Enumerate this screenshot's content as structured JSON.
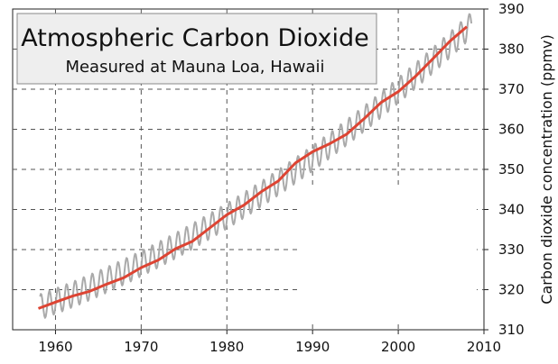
{
  "chart_data": {
    "type": "line",
    "title": "Atmospheric Carbon Dioxide",
    "subtitle": "Measured at Mauna Loa, Hawaii",
    "xlabel": "",
    "ylabel": "Carbon dioxide concentration (ppmv)",
    "xlim": [
      1955,
      2010
    ],
    "ylim": [
      310,
      390
    ],
    "x_ticks": [
      1960,
      1970,
      1980,
      1990,
      2000,
      2010
    ],
    "y_ticks": [
      310,
      320,
      330,
      340,
      350,
      360,
      370,
      380,
      390
    ],
    "grid": true,
    "y_axis_side": "right",
    "series": [
      {
        "color": "#aaaaaa",
        "style": "monthly-seasonal",
        "seasonal_amplitude": 3.2,
        "x": [
          1958.2,
          2008.5
        ],
        "values": [
          315.7,
          386
        ]
      },
      {
        "color": "#dd4433",
        "style": "annual-trend",
        "x": [
          1958,
          1960,
          1962,
          1964,
          1966,
          1968,
          1970,
          1972,
          1974,
          1976,
          1978,
          1980,
          1982,
          1984,
          1986,
          1988,
          1990,
          1992,
          1994,
          1996,
          1998,
          2000,
          2002,
          2004,
          2006,
          2008
        ],
        "values": [
          315.3,
          316.9,
          318.4,
          319.6,
          321.4,
          323.0,
          325.5,
          327.4,
          330.2,
          332.1,
          335.4,
          338.7,
          341.1,
          344.4,
          347.1,
          351.6,
          354.4,
          356.4,
          358.8,
          362.6,
          366.7,
          369.4,
          373.2,
          377.5,
          381.9,
          385.6
        ]
      }
    ]
  }
}
